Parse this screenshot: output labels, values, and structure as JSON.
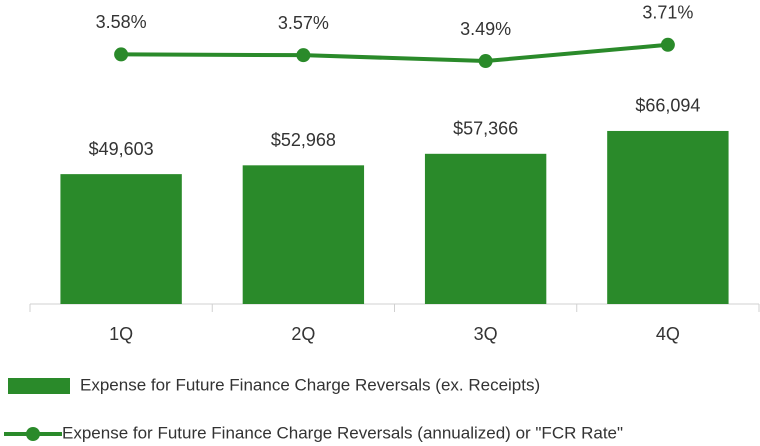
{
  "chart_data": {
    "type": "bar",
    "categories": [
      "1Q",
      "2Q",
      "3Q",
      "4Q"
    ],
    "series": [
      {
        "name": "Expense for Future Finance Charge Reversals (ex. Receipts)",
        "type": "bar",
        "color": "#2a8a2a",
        "values": [
          49603,
          52968,
          57366,
          66094
        ],
        "value_labels": [
          "$49,603",
          "$52,968",
          "$57,366",
          "$66,094"
        ]
      },
      {
        "name": "Expense for Future Finance Charge Reversals (annualized) or \"FCR Rate\"",
        "type": "line",
        "color": "#2a8a2a",
        "axis": "y2",
        "values": [
          3.58,
          3.57,
          3.49,
          3.71
        ],
        "value_labels": [
          "3.58%",
          "3.57%",
          "3.49%",
          "3.71%"
        ]
      }
    ],
    "ylim": [
      0,
      110000
    ],
    "y2lim": [
      0.2,
      4.1
    ],
    "legend": "bottom"
  }
}
